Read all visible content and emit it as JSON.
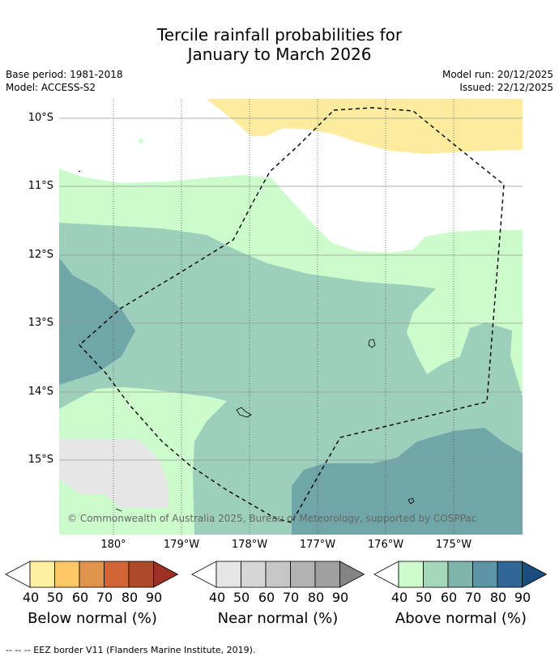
{
  "title": {
    "line1": "Tercile rainfall probabilities for",
    "line2": "January to March 2026"
  },
  "meta": {
    "base_period": "Base period: 1981-2018",
    "model": "Model: ACCESS-S2",
    "model_run": "Model run: 20/12/2025",
    "issued": "Issued: 22/12/2025"
  },
  "map": {
    "y_ticks": [
      "10°S",
      "11°S",
      "12°S",
      "13°S",
      "14°S",
      "15°S"
    ],
    "x_ticks": [
      "180°",
      "179°W",
      "178°W",
      "177°W",
      "176°W",
      "175°W"
    ],
    "copyright": "© Commonwealth of Australia 2025, Bureau of Meteorology, supported by COSPPac",
    "colors": {
      "above_40": "#ccfccc",
      "above_50": "#9dd0bc",
      "above_60": "#70a6a8",
      "below_40": "#fdeba0",
      "near_40": "#e6e6e6"
    }
  },
  "legends": [
    {
      "title": "Below normal (%)",
      "ticks": [
        "40",
        "50",
        "60",
        "70",
        "80",
        "90"
      ],
      "colors": [
        "#ffffff",
        "#fff0a0",
        "#fdc765",
        "#e0944b",
        "#d16536",
        "#ad4a2a",
        "#9c3123"
      ]
    },
    {
      "title": "Near normal (%)",
      "ticks": [
        "40",
        "50",
        "60",
        "70",
        "80",
        "90"
      ],
      "colors": [
        "#ffffff",
        "#e6e6e6",
        "#d6d6d6",
        "#c6c6c6",
        "#b2b2b2",
        "#a0a0a0",
        "#848484"
      ]
    },
    {
      "title": "Above normal (%)",
      "ticks": [
        "40",
        "50",
        "60",
        "70",
        "80",
        "90"
      ],
      "colors": [
        "#ffffff",
        "#ccfccc",
        "#a5d8b9",
        "#7fb4aa",
        "#5c96a6",
        "#316699",
        "#1a4c80"
      ]
    }
  ],
  "footer": "--  --  -- EEZ border V11 (Flanders Marine Institute, 2019)."
}
